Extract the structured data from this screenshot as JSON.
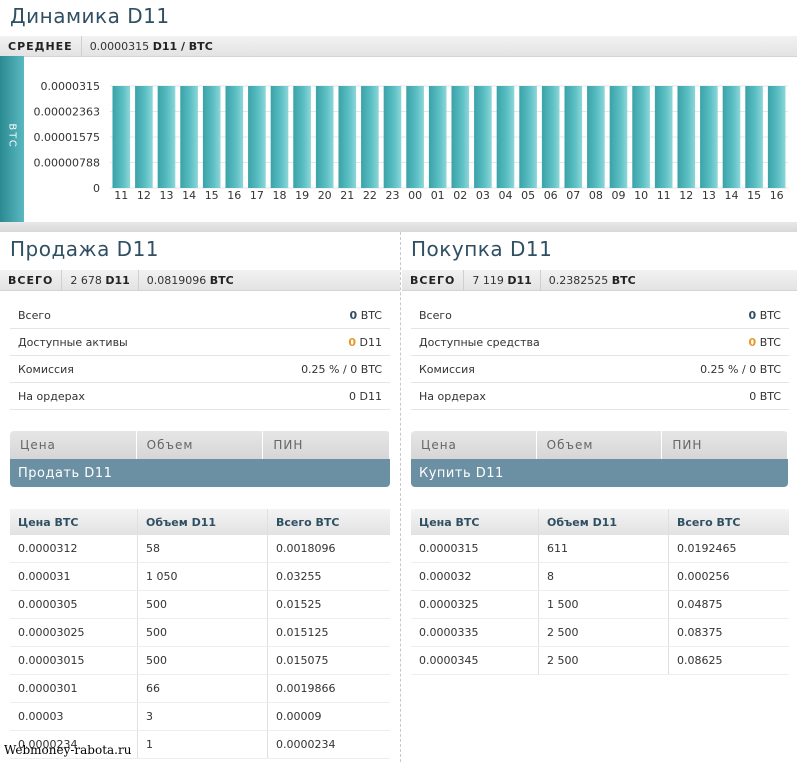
{
  "title": "Динамика D11",
  "avg": {
    "label": "СРЕДНЕЕ",
    "value": "0.0000315",
    "pair": "D11 / BTC"
  },
  "chart_data": {
    "type": "bar",
    "ylabel": "BTC",
    "yticks": [
      "0.0000315",
      "0.00002363",
      "0.00001575",
      "0.00000788",
      "0"
    ],
    "ylim": [
      0,
      3.15e-05
    ],
    "categories": [
      "11",
      "12",
      "13",
      "14",
      "15",
      "16",
      "17",
      "18",
      "19",
      "20",
      "21",
      "22",
      "23",
      "00",
      "01",
      "02",
      "03",
      "04",
      "05",
      "06",
      "07",
      "08",
      "09",
      "10",
      "11",
      "12",
      "13",
      "14",
      "15",
      "16"
    ],
    "values": [
      3.15e-05,
      3.15e-05,
      3.15e-05,
      3.15e-05,
      3.15e-05,
      3.15e-05,
      3.15e-05,
      3.15e-05,
      3.15e-05,
      3.15e-05,
      3.15e-05,
      3.15e-05,
      3.15e-05,
      3.15e-05,
      3.15e-05,
      3.15e-05,
      3.15e-05,
      3.15e-05,
      3.15e-05,
      3.15e-05,
      3.15e-05,
      3.15e-05,
      3.15e-05,
      3.15e-05,
      3.15e-05,
      3.15e-05,
      3.15e-05,
      3.15e-05,
      3.15e-05,
      3.15e-05
    ],
    "grid": true,
    "color": "#4fb3b8"
  },
  "sell": {
    "title": "Продажа D11",
    "total_label": "ВСЕГО",
    "total_amount": "2 678",
    "total_cur": "D11",
    "total_btc": "0.0819096",
    "total_btc_cur": "BTC",
    "info": [
      {
        "k": "Всего",
        "num": "0",
        "unit": "BTC",
        "orange": false
      },
      {
        "k": "Доступные активы",
        "num": "0",
        "unit": "D11",
        "orange": true
      },
      {
        "k": "Комиссия",
        "num": "",
        "unit": "0.25 % / 0 BTC",
        "orange": false
      },
      {
        "k": "На ордерах",
        "num": "",
        "unit": "0 D11",
        "orange": false
      }
    ],
    "form_heads": [
      "Цена",
      "Объем",
      "ПИН"
    ],
    "button": "Продать D11",
    "table_heads": [
      "Цена BTC",
      "Объем D11",
      "Всего BTC"
    ],
    "rows": [
      [
        "0.0000312",
        "58",
        "0.0018096"
      ],
      [
        "0.000031",
        "1 050",
        "0.03255"
      ],
      [
        "0.0000305",
        "500",
        "0.01525"
      ],
      [
        "0.00003025",
        "500",
        "0.015125"
      ],
      [
        "0.00003015",
        "500",
        "0.015075"
      ],
      [
        "0.0000301",
        "66",
        "0.0019866"
      ],
      [
        "0.00003",
        "3",
        "0.00009"
      ],
      [
        "0.0000234",
        "1",
        "0.0000234"
      ]
    ]
  },
  "buy": {
    "title": "Покупка D11",
    "total_label": "ВСЕГО",
    "total_amount": "7 119",
    "total_cur": "D11",
    "total_btc": "0.2382525",
    "total_btc_cur": "BTC",
    "info": [
      {
        "k": "Всего",
        "num": "0",
        "unit": "BTC",
        "orange": false
      },
      {
        "k": "Доступные средства",
        "num": "0",
        "unit": "BTC",
        "orange": true
      },
      {
        "k": "Комиссия",
        "num": "",
        "unit": "0.25 % / 0 BTC",
        "orange": false
      },
      {
        "k": "На ордерах",
        "num": "",
        "unit": "0 BTC",
        "orange": false
      }
    ],
    "form_heads": [
      "Цена",
      "Объем",
      "ПИН"
    ],
    "button": "Купить D11",
    "table_heads": [
      "Цена BTC",
      "Объем D11",
      "Всего BTC"
    ],
    "rows": [
      [
        "0.0000315",
        "611",
        "0.0192465"
      ],
      [
        "0.000032",
        "8",
        "0.000256"
      ],
      [
        "0.0000325",
        "1 500",
        "0.04875"
      ],
      [
        "0.0000335",
        "2 500",
        "0.08375"
      ],
      [
        "0.0000345",
        "2 500",
        "0.08625"
      ]
    ]
  },
  "watermark": "Webmoney-rabota.ru"
}
